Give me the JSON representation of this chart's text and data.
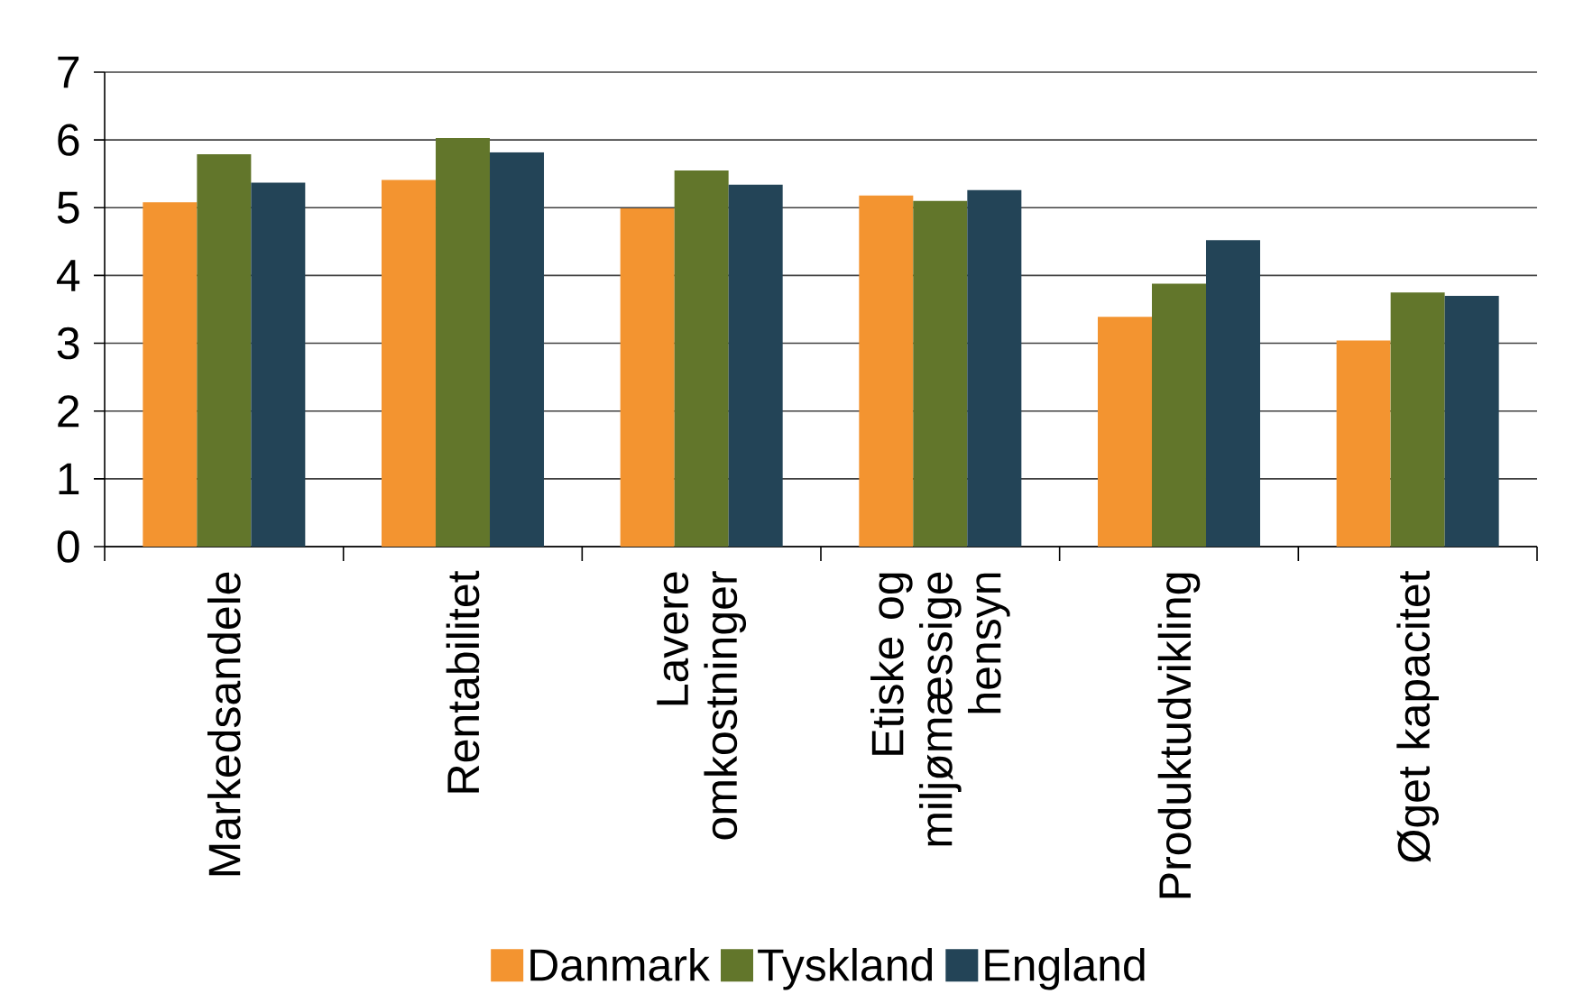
{
  "chart_data": {
    "type": "bar",
    "categories": [
      "Markedsandele",
      "Rentabilitet",
      "Lavere omkostninger",
      "Etiske og miljømæssige hensyn",
      "Produktudvikling",
      "Øget kapacitet"
    ],
    "series": [
      {
        "name": "Danmark",
        "color": "#f39430",
        "values": [
          5.08,
          5.41,
          4.99,
          5.18,
          3.39,
          3.04
        ]
      },
      {
        "name": "Tyskland",
        "color": "#62762b",
        "values": [
          5.79,
          6.03,
          5.55,
          5.1,
          3.88,
          3.75
        ]
      },
      {
        "name": "England",
        "color": "#234457",
        "values": [
          5.37,
          5.82,
          5.34,
          5.26,
          4.52,
          3.7
        ]
      }
    ],
    "ylim": [
      0,
      7
    ],
    "yticks": [
      0,
      1,
      2,
      3,
      4,
      5,
      6,
      7
    ],
    "grid": "y",
    "legend": "bottom"
  }
}
